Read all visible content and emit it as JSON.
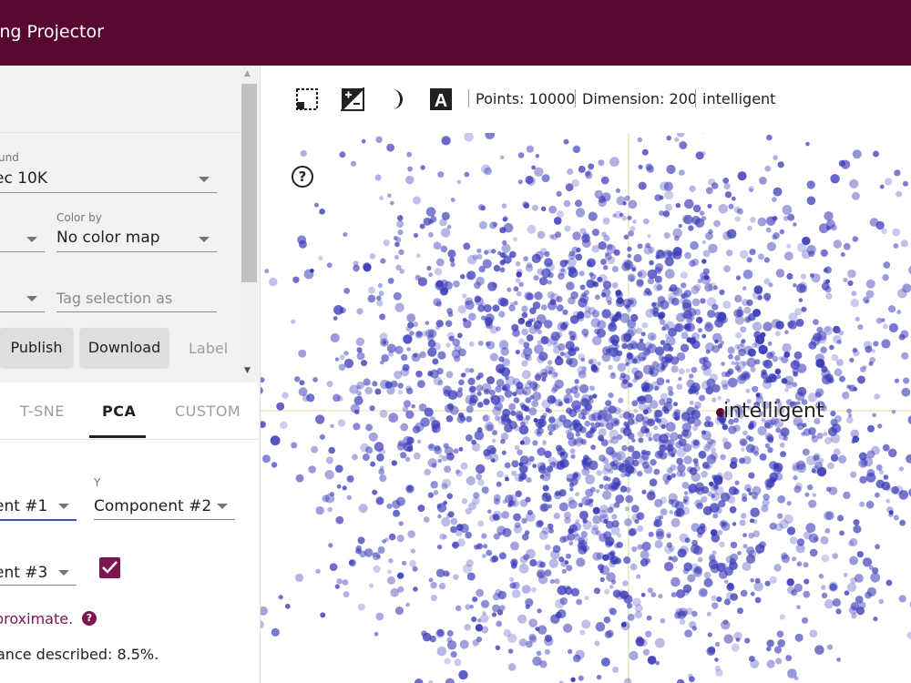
{
  "app": {
    "title": "ding Projector"
  },
  "data_panel": {
    "dataset_label": "und",
    "dataset_value": "ec 10K",
    "color_by_label": "Color by",
    "color_by_value": "No color map",
    "tag_selection_placeholder": "Tag selection as",
    "publish_label": "Publish",
    "download_label": "Download",
    "label_text": "Label"
  },
  "projection_tabs": [
    {
      "label": "T-SNE",
      "active": false
    },
    {
      "label": "PCA",
      "active": true
    },
    {
      "label": "CUSTOM",
      "active": false
    }
  ],
  "pca": {
    "x_value": "ent #1",
    "y_label": "Y",
    "y_value": "Component #2",
    "z_value": "ent #3",
    "z_enabled": true,
    "approximate_text": "proximate.",
    "variance_text": "ance described: 8.5%."
  },
  "toolbar": {
    "icons": [
      "selection-box-icon",
      "night-mode-contrast-icon",
      "moon-icon",
      "label-a-icon"
    ],
    "points_text": "Points: 10000",
    "dimension_text": "Dimension: 200",
    "selected_word": "intelligent"
  },
  "visualization": {
    "highlighted_label": "intelligent",
    "point_color": "#3a3ab8",
    "point_count_rendered": 3000
  }
}
